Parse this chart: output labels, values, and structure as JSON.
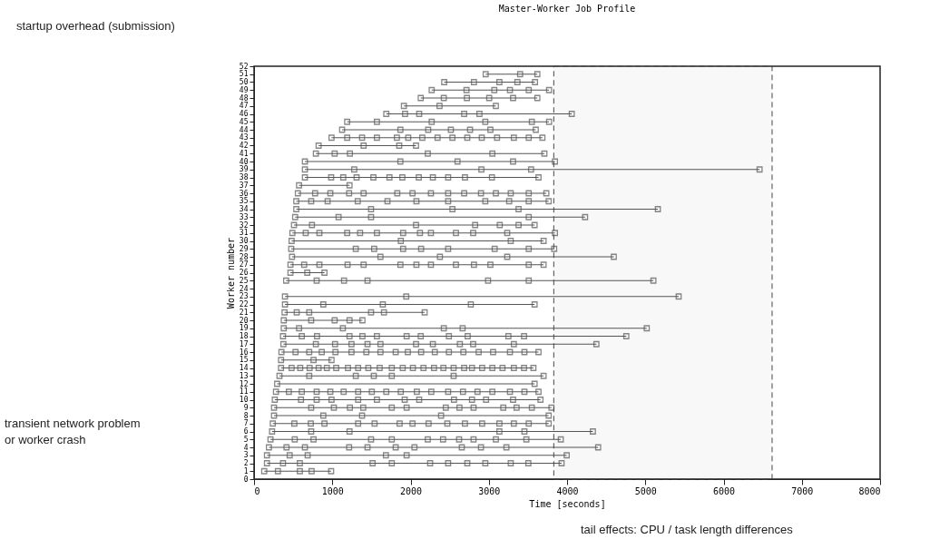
{
  "chart_data": {
    "type": "line",
    "title": "Master-Worker Job Profile",
    "xlabel": "Time [seconds]",
    "ylabel": "Worker number",
    "xlim": [
      0,
      8000
    ],
    "xticks": [
      0,
      1000,
      2000,
      3000,
      4000,
      5000,
      6000,
      7000,
      8000
    ],
    "ylim": [
      0,
      52
    ],
    "yticks": [
      0,
      1,
      2,
      3,
      4,
      5,
      6,
      7,
      8,
      9,
      10,
      11,
      12,
      13,
      14,
      15,
      16,
      17,
      18,
      19,
      20,
      21,
      22,
      23,
      24,
      25,
      26,
      27,
      28,
      29,
      30,
      31,
      32,
      33,
      34,
      35,
      36,
      37,
      38,
      39,
      40,
      41,
      42,
      43,
      44,
      45,
      46,
      47,
      48,
      49,
      50,
      51,
      52
    ],
    "marker": "square",
    "line_style": "solid",
    "grid": false,
    "annotations": [
      "startup overhead (submission)",
      "transient network problem\nor worker crash",
      "tail effects: CPU / task length differences"
    ],
    "bands": [
      {
        "axis": "x",
        "from": 3830,
        "to": 6620,
        "color": "#444444"
      }
    ],
    "series": [
      {
        "color": "#555555",
        "x": [
          130,
          305,
          585,
          735,
          985
        ],
        "values": [
          1,
          1,
          1,
          1,
          1
        ]
      },
      {
        "color": "#555555",
        "x": [
          165,
          370,
          585,
          1515,
          1760,
          2250,
          2480,
          2725,
          2955,
          3280,
          3505,
          3930
        ],
        "values": [
          2,
          2,
          2,
          2,
          2,
          2,
          2,
          2,
          2,
          2,
          2,
          2
        ]
      },
      {
        "color": "#555555",
        "x": [
          165,
          455,
          685,
          1685,
          1950,
          3995
        ],
        "values": [
          3,
          3,
          3,
          3,
          3,
          3
        ]
      },
      {
        "color": "#555555",
        "x": [
          190,
          415,
          650,
          1215,
          1450,
          1810,
          2050,
          2655,
          2900,
          3225,
          4397
        ],
        "values": [
          4,
          4,
          4,
          4,
          4,
          4,
          4,
          4,
          4,
          4,
          4
        ]
      },
      {
        "color": "#555555",
        "x": [
          210,
          520,
          760,
          1495,
          1760,
          2220,
          2415,
          2620,
          2805,
          3090,
          3480,
          3920
        ],
        "values": [
          5,
          5,
          5,
          5,
          5,
          5,
          5,
          5,
          5,
          5,
          5,
          5
        ]
      },
      {
        "color": "#555555",
        "x": [
          230,
          730,
          1220,
          3135,
          3455,
          4330
        ],
        "values": [
          6,
          6,
          6,
          6,
          6,
          6
        ]
      },
      {
        "color": "#555555",
        "x": [
          240,
          515,
          725,
          900,
          1330,
          1540,
          1860,
          2025,
          2230,
          2470,
          2695,
          2915,
          3135,
          3320,
          3510,
          3765
        ],
        "values": [
          7,
          7,
          7,
          7,
          7,
          7,
          7,
          7,
          7,
          7,
          7,
          7,
          7,
          7,
          7,
          7
        ]
      },
      {
        "color": "#555555",
        "x": [
          255,
          885,
          1380,
          2390,
          3765
        ],
        "values": [
          8,
          8,
          8,
          8,
          8
        ]
      },
      {
        "color": "#555555",
        "x": [
          255,
          730,
          1020,
          1225,
          1395,
          1760,
          1950,
          2450,
          2625,
          2805,
          3185,
          3355,
          3550,
          3800
        ],
        "values": [
          9,
          9,
          9,
          9,
          9,
          9,
          9,
          9,
          9,
          9,
          9,
          9,
          9,
          9
        ]
      },
      {
        "color": "#555555",
        "x": [
          265,
          600,
          800,
          990,
          1330,
          1570,
          1925,
          2110,
          2555,
          2785,
          2965,
          3310,
          3660
        ],
        "values": [
          10,
          10,
          10,
          10,
          10,
          10,
          10,
          10,
          10,
          10,
          10,
          10,
          10
        ]
      },
      {
        "color": "#555555",
        "x": [
          280,
          445,
          610,
          800,
          975,
          1145,
          1330,
          1505,
          1690,
          1875,
          2080,
          2265,
          2480,
          2670,
          2855,
          3045,
          3270,
          3455,
          3635
        ],
        "values": [
          11,
          11,
          11,
          11,
          11,
          11,
          11,
          11,
          11,
          11,
          11,
          11,
          11,
          11,
          11,
          11,
          11,
          11,
          11
        ]
      },
      {
        "color": "#555555",
        "x": [
          295,
          3585
        ],
        "values": [
          12,
          12
        ]
      },
      {
        "color": "#555555",
        "x": [
          325,
          705,
          1300,
          1530,
          1760,
          2550,
          3700
        ],
        "values": [
          13,
          13,
          13,
          13,
          13,
          13,
          13
        ]
      },
      {
        "color": "#555555",
        "x": [
          345,
          480,
          590,
          710,
          825,
          930,
          1050,
          1200,
          1330,
          1460,
          1605,
          1760,
          1900,
          2030,
          2165,
          2300,
          2420,
          2550,
          2685,
          2785,
          2915,
          3045,
          3175,
          3320,
          3450,
          3570
        ],
        "values": [
          14,
          14,
          14,
          14,
          14,
          14,
          14,
          14,
          14,
          14,
          14,
          14,
          14,
          14,
          14,
          14,
          14,
          14,
          14,
          14,
          14,
          14,
          14,
          14,
          14,
          14
        ]
      },
      {
        "color": "#555555",
        "x": [
          345,
          760,
          990
        ],
        "values": [
          15,
          15,
          15
        ]
      },
      {
        "color": "#555555",
        "x": [
          350,
          530,
          705,
          865,
          1040,
          1245,
          1435,
          1615,
          1810,
          1965,
          2135,
          2310,
          2490,
          2675,
          2870,
          3055,
          3270,
          3455,
          3635
        ],
        "values": [
          16,
          16,
          16,
          16,
          16,
          16,
          16,
          16,
          16,
          16,
          16,
          16,
          16,
          16,
          16,
          16,
          16,
          16,
          16
        ]
      },
      {
        "color": "#555555",
        "x": [
          375,
          790,
          1035,
          1245,
          1450,
          1615,
          2070,
          2285,
          2630,
          2800,
          3320,
          4375
        ],
        "values": [
          17,
          17,
          17,
          17,
          17,
          17,
          17,
          17,
          17,
          17,
          17,
          17
        ]
      },
      {
        "color": "#555555",
        "x": [
          370,
          610,
          805,
          1220,
          1385,
          1570,
          1950,
          2130,
          2490,
          2730,
          3250,
          3450,
          4757
        ],
        "values": [
          18,
          18,
          18,
          18,
          18,
          18,
          18,
          18,
          18,
          18,
          18,
          18,
          18
        ]
      },
      {
        "color": "#555555",
        "x": [
          380,
          575,
          1135,
          2425,
          2665,
          5018
        ],
        "values": [
          19,
          19,
          19,
          19,
          19,
          19
        ]
      },
      {
        "color": "#555555",
        "x": [
          380,
          730,
          1030,
          1220,
          1385
        ],
        "values": [
          20,
          20,
          20,
          20,
          20
        ]
      },
      {
        "color": "#555555",
        "x": [
          390,
          545,
          705,
          1495,
          1660,
          2180
        ],
        "values": [
          21,
          21,
          21,
          21,
          21,
          21
        ]
      },
      {
        "color": "#555555",
        "x": [
          395,
          885,
          1645,
          2770,
          3585
        ],
        "values": [
          22,
          22,
          22,
          22,
          22
        ]
      },
      {
        "color": "#555555",
        "x": [
          395,
          1945,
          5426
        ],
        "values": [
          23,
          23,
          23
        ]
      },
      {
        "color": "#555555",
        "x": [
          410,
          800,
          1150,
          1450,
          2990,
          3510,
          5103
        ],
        "values": [
          25,
          25,
          25,
          25,
          25,
          25,
          25
        ]
      },
      {
        "color": "#555555",
        "x": [
          465,
          680,
          900
        ],
        "values": [
          26,
          26,
          26
        ]
      },
      {
        "color": "#555555",
        "x": [
          465,
          640,
          835,
          1195,
          1400,
          1870,
          2075,
          2260,
          2580,
          2810,
          3020,
          3510,
          3700
        ],
        "values": [
          27,
          27,
          27,
          27,
          27,
          27,
          27,
          27,
          27,
          27,
          27,
          27,
          27
        ]
      },
      {
        "color": "#555555",
        "x": [
          485,
          1615,
          2375,
          3235,
          4597
        ],
        "values": [
          28,
          28,
          28,
          28,
          28
        ]
      },
      {
        "color": "#555555",
        "x": [
          475,
          1300,
          1535,
          1905,
          2135,
          2480,
          3075,
          3510,
          3835
        ],
        "values": [
          29,
          29,
          29,
          29,
          29,
          29,
          29,
          29,
          29
        ]
      },
      {
        "color": "#555555",
        "x": [
          480,
          1875,
          3280,
          3700
        ],
        "values": [
          30,
          30,
          30,
          30
        ]
      },
      {
        "color": "#555555",
        "x": [
          490,
          660,
          835,
          1190,
          1355,
          1570,
          1905,
          2120,
          2260,
          2580,
          2800,
          3235,
          3845
        ],
        "values": [
          31,
          31,
          31,
          31,
          31,
          31,
          31,
          31,
          31,
          31,
          31,
          31,
          31
        ]
      },
      {
        "color": "#555555",
        "x": [
          510,
          740,
          2070,
          2825,
          3140,
          3380,
          3585
        ],
        "values": [
          32,
          32,
          32,
          32,
          32,
          32,
          32
        ]
      },
      {
        "color": "#555555",
        "x": [
          525,
          1080,
          1495,
          3510,
          4230
        ],
        "values": [
          33,
          33,
          33,
          33,
          33
        ]
      },
      {
        "color": "#555555",
        "x": [
          540,
          1495,
          2535,
          3380,
          5160
        ],
        "values": [
          34,
          34,
          34,
          34,
          34
        ]
      },
      {
        "color": "#555555",
        "x": [
          540,
          730,
          940,
          1325,
          1705,
          2075,
          2480,
          2955,
          3260,
          3510,
          3765
        ],
        "values": [
          35,
          35,
          35,
          35,
          35,
          35,
          35,
          35,
          35,
          35,
          35
        ]
      },
      {
        "color": "#555555",
        "x": [
          560,
          780,
          975,
          1215,
          1400,
          1830,
          2025,
          2260,
          2480,
          2685,
          2900,
          3090,
          3280,
          3510,
          3735
        ],
        "values": [
          36,
          36,
          36,
          36,
          36,
          36,
          36,
          36,
          36,
          36,
          36,
          36,
          36,
          36,
          36
        ]
      },
      {
        "color": "#555555",
        "x": [
          575,
          1220
        ],
        "values": [
          37,
          37
        ]
      },
      {
        "color": "#555555",
        "x": [
          650,
          985,
          1140,
          1310,
          1525,
          1730,
          1895,
          2105,
          2285,
          2480,
          2695,
          3040,
          3635
        ],
        "values": [
          38,
          38,
          38,
          38,
          38,
          38,
          38,
          38,
          38,
          38,
          38,
          38,
          38
        ]
      },
      {
        "color": "#555555",
        "x": [
          650,
          1280,
          2905,
          3540,
          6460
        ],
        "values": [
          39,
          39,
          39,
          39,
          39
        ]
      },
      {
        "color": "#555555",
        "x": [
          650,
          1870,
          2600,
          3310,
          3845
        ],
        "values": [
          40,
          40,
          40,
          40,
          40
        ]
      },
      {
        "color": "#555555",
        "x": [
          790,
          1030,
          1225,
          2220,
          3045,
          3710
        ],
        "values": [
          41,
          41,
          41,
          41,
          41,
          41
        ]
      },
      {
        "color": "#555555",
        "x": [
          825,
          1400,
          1855,
          2070
        ],
        "values": [
          42,
          42,
          42,
          42
        ]
      },
      {
        "color": "#555555",
        "x": [
          990,
          1190,
          1380,
          1570,
          1825,
          1970,
          2150,
          2345,
          2535,
          2725,
          2910,
          3105,
          3320,
          3510,
          3685
        ],
        "values": [
          43,
          43,
          43,
          43,
          43,
          43,
          43,
          43,
          43,
          43,
          43,
          43,
          43,
          43,
          43
        ]
      },
      {
        "color": "#555555",
        "x": [
          1125,
          1870,
          2225,
          2515,
          2760,
          3020,
          3600
        ],
        "values": [
          44,
          44,
          44,
          44,
          44,
          44,
          44
        ]
      },
      {
        "color": "#555555",
        "x": [
          1190,
          1570,
          2270,
          2955,
          3550,
          3770
        ],
        "values": [
          45,
          45,
          45,
          45,
          45,
          45
        ]
      },
      {
        "color": "#555555",
        "x": [
          1690,
          1930,
          2110,
          2685,
          2880,
          4060
        ],
        "values": [
          46,
          46,
          46,
          46,
          46,
          46
        ]
      },
      {
        "color": "#555555",
        "x": [
          1915,
          2370,
          3090
        ],
        "values": [
          47,
          47,
          47
        ]
      },
      {
        "color": "#555555",
        "x": [
          2130,
          2425,
          2720,
          3005,
          3310,
          3620
        ],
        "values": [
          48,
          48,
          48,
          48,
          48,
          48
        ]
      },
      {
        "color": "#555555",
        "x": [
          2270,
          2715,
          3070,
          3270,
          3510,
          3770
        ],
        "values": [
          49,
          49,
          49,
          49,
          49,
          49
        ]
      },
      {
        "color": "#555555",
        "x": [
          2430,
          2810,
          3135,
          3365,
          3590
        ],
        "values": [
          50,
          50,
          50,
          50,
          50
        ]
      },
      {
        "color": "#555555",
        "x": [
          2960,
          3400,
          3620
        ],
        "values": [
          51,
          51,
          51
        ]
      }
    ]
  }
}
